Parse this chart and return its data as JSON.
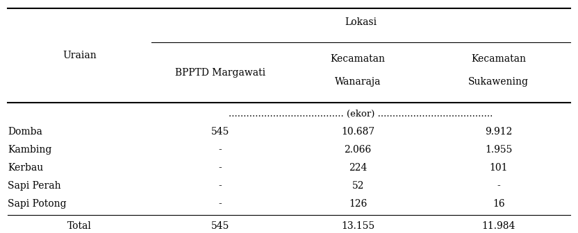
{
  "col_header_row1": [
    "",
    "Lokasi",
    "",
    ""
  ],
  "col_header_row2": [
    "Uraian",
    "BPPTD Margawati",
    "Kecamatan\nWanaraja",
    "Kecamatan\nSukawening"
  ],
  "unit_row": "....................................... (ekor) .......................................",
  "rows": [
    [
      "Domba",
      "545",
      "10.687",
      "9.912"
    ],
    [
      "Kambing",
      "-",
      "2.066",
      "1.955"
    ],
    [
      "Kerbau",
      "-",
      "224",
      "101"
    ],
    [
      "Sapi Perah",
      "-",
      "52",
      "-"
    ],
    [
      "Sapi Potong",
      "-",
      "126",
      "16"
    ]
  ],
  "total_row": [
    "Total",
    "545",
    "13.155",
    "11.984"
  ],
  "fig_width": 8.32,
  "fig_height": 3.36,
  "dpi": 100,
  "font_size": 10,
  "font_family": "serif"
}
